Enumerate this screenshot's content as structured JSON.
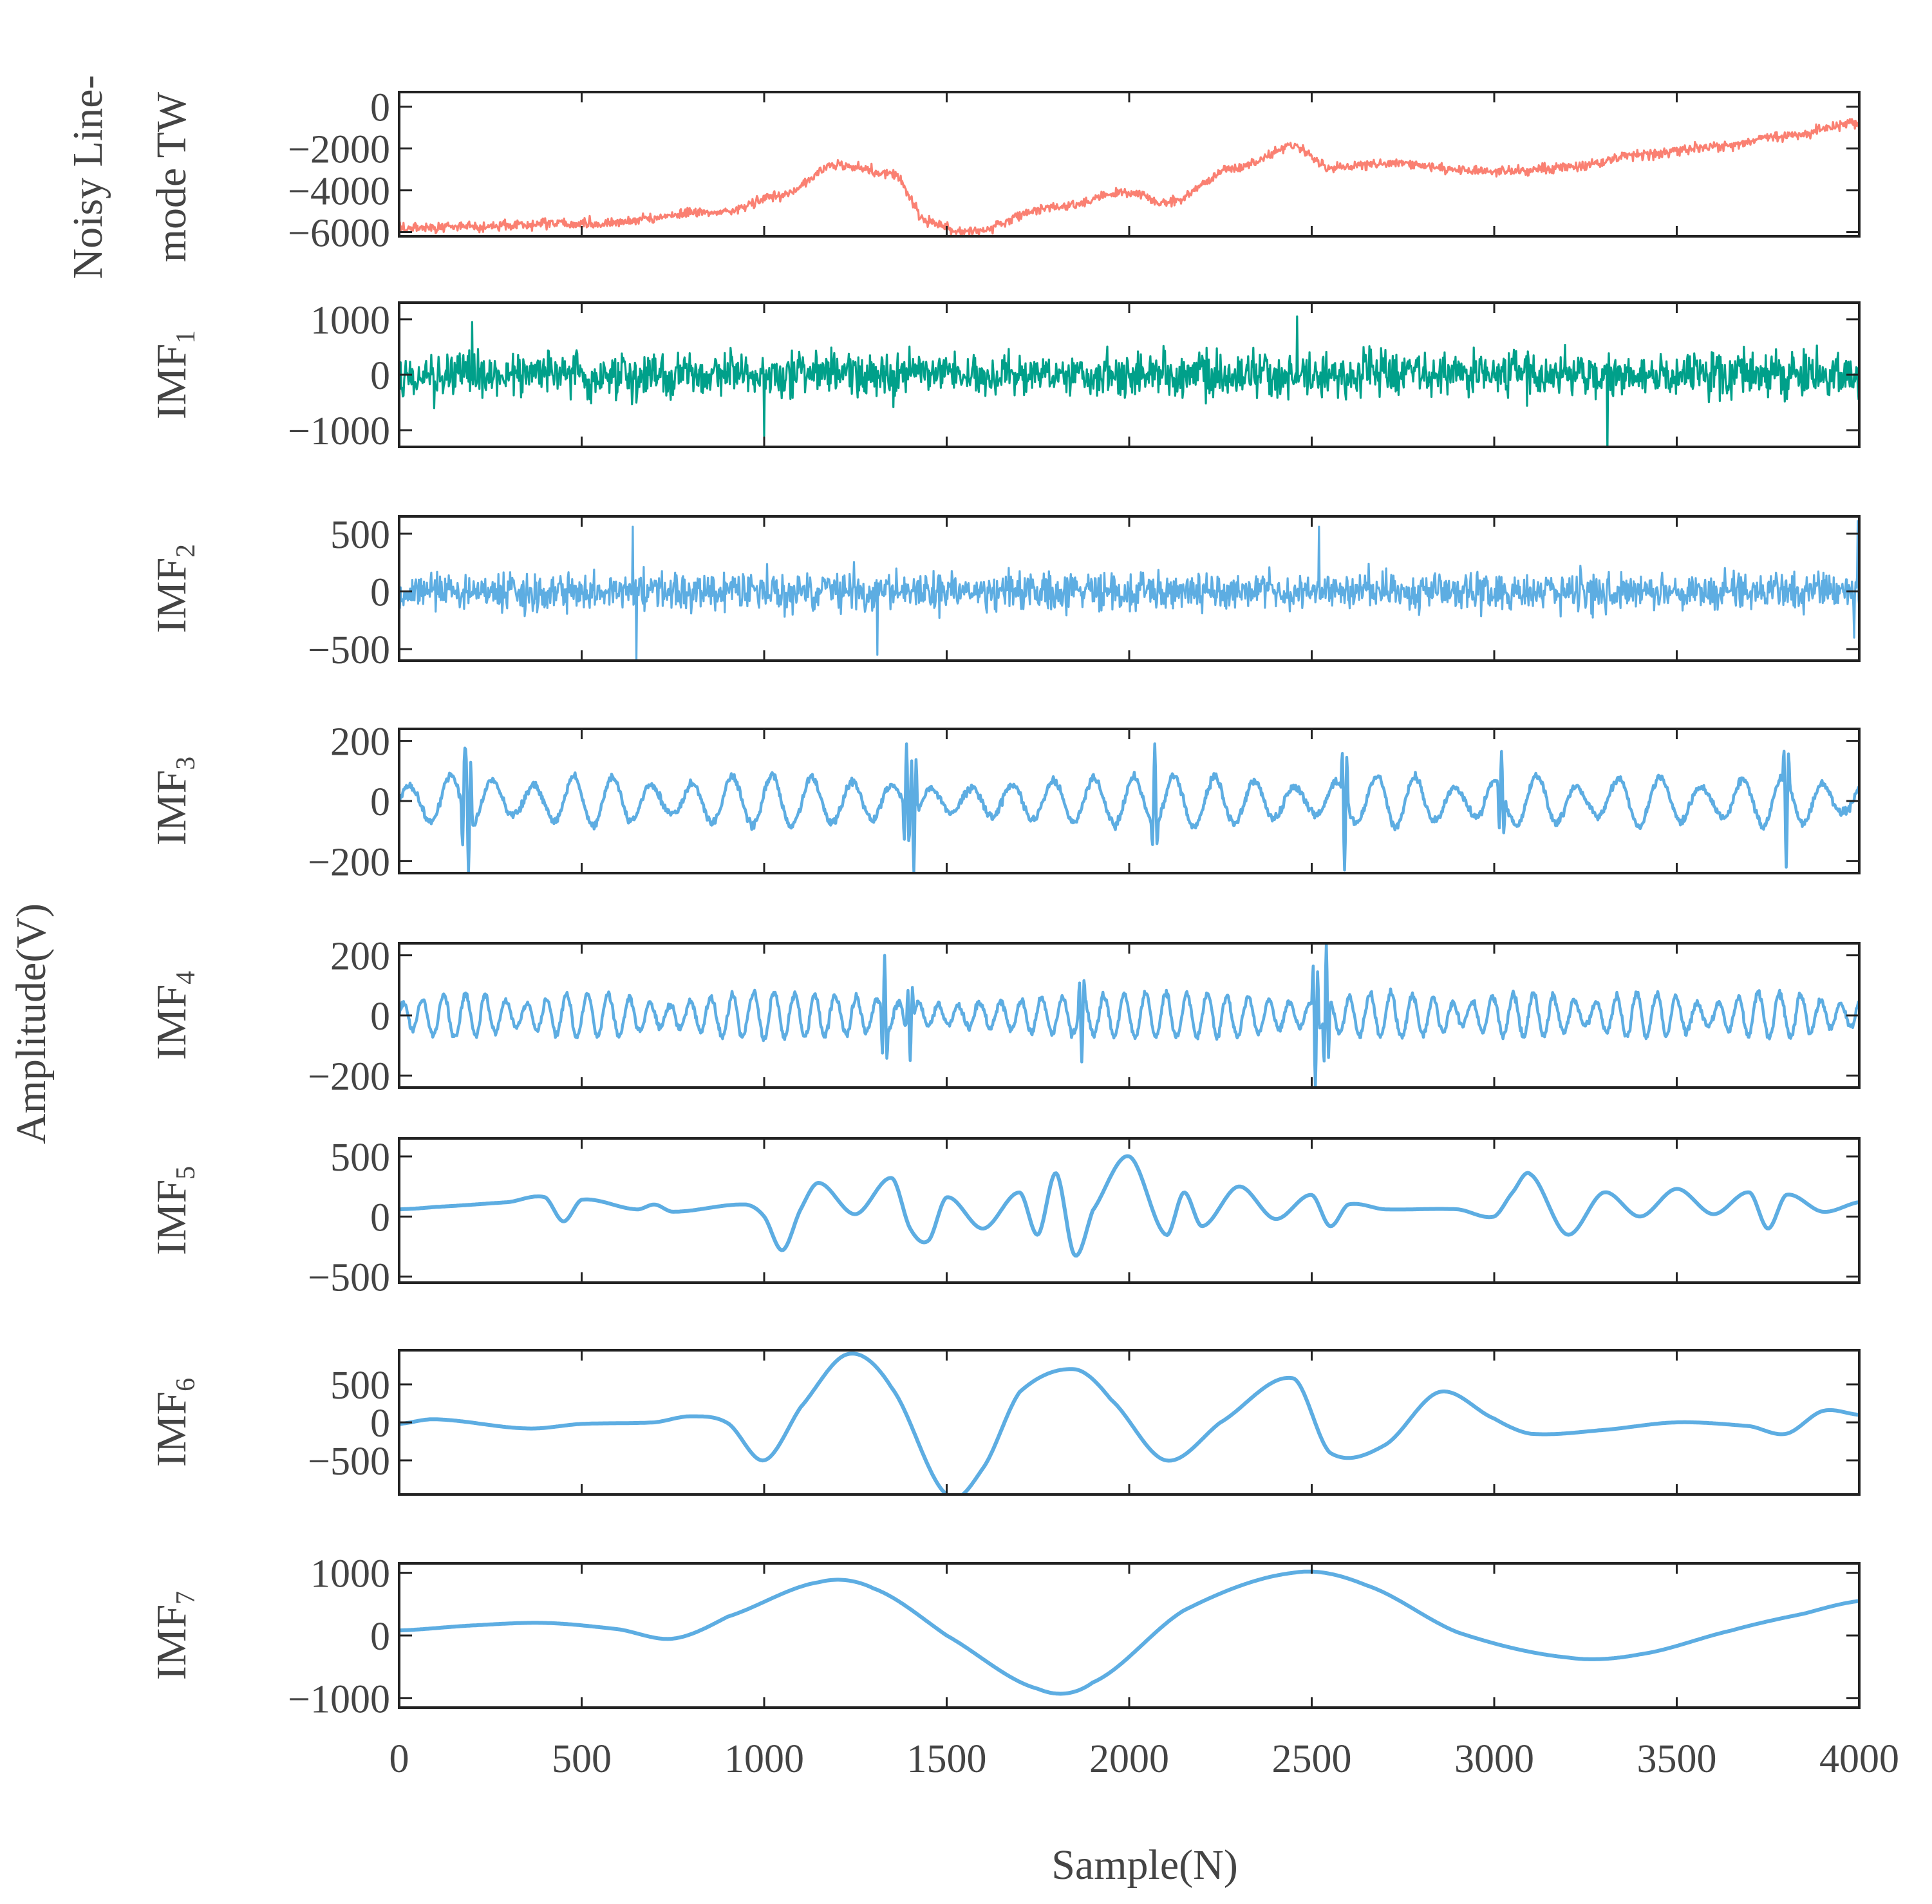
{
  "figure": {
    "ylabel": "Amplitude(V)",
    "xlabel": "Sample(N)",
    "colors": {
      "noisy": "#FA8072",
      "imf1": "#00A08A",
      "imf": "#5DADE2",
      "axis": "#222222",
      "text": "#444444"
    }
  },
  "chart_data": [
    {
      "type": "line",
      "id": "noisy",
      "ylabel_lines": [
        "Noisy Line-",
        "mode TW"
      ],
      "xlim": [
        0,
        4000
      ],
      "ylim": [
        -6200,
        700
      ],
      "yticks": [
        0,
        -2000,
        -4000,
        -6000
      ],
      "ytick_labels": [
        "0",
        "−2000",
        "−4000",
        "−6000"
      ],
      "color_key": "noisy",
      "style": "noisy",
      "noise_amp": 420,
      "trend_x": [
        0,
        500,
        900,
        1050,
        1200,
        1350,
        1450,
        1550,
        1800,
        2000,
        2100,
        2300,
        2450,
        2550,
        2700,
        3000,
        3200,
        3400,
        3600,
        3800,
        4000
      ],
      "trend_y": [
        -5800,
        -5600,
        -5000,
        -4200,
        -2800,
        -3200,
        -5500,
        -6000,
        -4800,
        -4100,
        -4600,
        -2900,
        -1900,
        -2900,
        -2700,
        -3100,
        -2900,
        -2300,
        -1900,
        -1400,
        -800
      ]
    },
    {
      "type": "line",
      "id": "imf1",
      "ylabel": "IMF",
      "ylabel_sub": "1",
      "xlim": [
        0,
        4000
      ],
      "ylim": [
        -1300,
        1300
      ],
      "yticks": [
        1000,
        0,
        -1000
      ],
      "ytick_labels": [
        "1000",
        "0",
        "−1000"
      ],
      "color_key": "imf1",
      "style": "noise",
      "amp": 520,
      "spikes": [
        [
          1000,
          -1100
        ],
        [
          2460,
          1050
        ],
        [
          3310,
          -1400
        ],
        [
          200,
          950
        ]
      ]
    },
    {
      "type": "line",
      "id": "imf2",
      "ylabel": "IMF",
      "ylabel_sub": "2",
      "xlim": [
        0,
        4000
      ],
      "ylim": [
        -600,
        650
      ],
      "yticks": [
        500,
        0,
        -500
      ],
      "ytick_labels": [
        "500",
        "0",
        "−500"
      ],
      "color_key": "imf",
      "style": "noise",
      "amp": 210,
      "spikes": [
        [
          640,
          560
        ],
        [
          650,
          -600
        ],
        [
          1310,
          -550
        ],
        [
          2520,
          560
        ],
        [
          3995,
          610
        ],
        [
          3985,
          -400
        ]
      ]
    },
    {
      "type": "line",
      "id": "imf3",
      "ylabel": "IMF",
      "ylabel_sub": "3",
      "xlim": [
        0,
        4000
      ],
      "ylim": [
        -240,
        240
      ],
      "yticks": [
        200,
        0,
        -200
      ],
      "ytick_labels": [
        "200",
        "0",
        "−200"
      ],
      "color_key": "imf",
      "style": "burst",
      "freq": 55,
      "amp": 85,
      "spikes": [
        [
          180,
          220
        ],
        [
          190,
          -240
        ],
        [
          1390,
          190
        ],
        [
          1410,
          -235
        ],
        [
          2070,
          190
        ],
        [
          2590,
          -230
        ],
        [
          3020,
          165
        ],
        [
          3800,
          -220
        ]
      ]
    },
    {
      "type": "line",
      "id": "imf4",
      "ylabel": "IMF",
      "ylabel_sub": "4",
      "xlim": [
        0,
        4000
      ],
      "ylim": [
        -240,
        240
      ],
      "yticks": [
        200,
        0,
        -200
      ],
      "ytick_labels": [
        "200",
        "0",
        "−200"
      ],
      "color_key": "imf",
      "style": "burst",
      "freq": 28,
      "amp": 75,
      "spikes": [
        [
          1330,
          200
        ],
        [
          1400,
          -150
        ],
        [
          1870,
          -155
        ],
        [
          2510,
          -240
        ],
        [
          2540,
          240
        ]
      ]
    },
    {
      "type": "line",
      "id": "imf5",
      "ylabel": "IMF",
      "ylabel_sub": "5",
      "xlim": [
        0,
        4000
      ],
      "ylim": [
        -550,
        650
      ],
      "yticks": [
        500,
        0,
        -500
      ],
      "ytick_labels": [
        "500",
        "0",
        "−500"
      ],
      "color_key": "imf",
      "style": "wave",
      "knots": [
        [
          0,
          60
        ],
        [
          100,
          80
        ],
        [
          300,
          120
        ],
        [
          400,
          160
        ],
        [
          450,
          -40
        ],
        [
          500,
          140
        ],
        [
          650,
          60
        ],
        [
          700,
          100
        ],
        [
          750,
          40
        ],
        [
          950,
          100
        ],
        [
          1000,
          0
        ],
        [
          1050,
          -280
        ],
        [
          1100,
          60
        ],
        [
          1150,
          280
        ],
        [
          1250,
          20
        ],
        [
          1350,
          320
        ],
        [
          1400,
          -100
        ],
        [
          1450,
          -200
        ],
        [
          1500,
          160
        ],
        [
          1600,
          -100
        ],
        [
          1700,
          200
        ],
        [
          1750,
          -150
        ],
        [
          1800,
          360
        ],
        [
          1850,
          -320
        ],
        [
          1900,
          50
        ],
        [
          2000,
          500
        ],
        [
          2100,
          -150
        ],
        [
          2150,
          200
        ],
        [
          2200,
          -80
        ],
        [
          2300,
          250
        ],
        [
          2400,
          -20
        ],
        [
          2500,
          180
        ],
        [
          2550,
          -80
        ],
        [
          2600,
          100
        ],
        [
          2700,
          60
        ],
        [
          2900,
          60
        ],
        [
          3000,
          0
        ],
        [
          3050,
          200
        ],
        [
          3100,
          350
        ],
        [
          3200,
          -150
        ],
        [
          3300,
          200
        ],
        [
          3400,
          0
        ],
        [
          3500,
          230
        ],
        [
          3600,
          20
        ],
        [
          3700,
          200
        ],
        [
          3750,
          -100
        ],
        [
          3800,
          180
        ],
        [
          3900,
          40
        ],
        [
          4000,
          120
        ]
      ]
    },
    {
      "type": "line",
      "id": "imf6",
      "ylabel": "IMF",
      "ylabel_sub": "6",
      "xlim": [
        0,
        4000
      ],
      "ylim": [
        -950,
        950
      ],
      "yticks": [
        500,
        0,
        -500
      ],
      "ytick_labels": [
        "500",
        "0",
        "−500"
      ],
      "color_key": "imf",
      "style": "smooth",
      "knots": [
        [
          0,
          -20
        ],
        [
          100,
          40
        ],
        [
          350,
          -80
        ],
        [
          500,
          -20
        ],
        [
          700,
          0
        ],
        [
          800,
          80
        ],
        [
          900,
          -10
        ],
        [
          1000,
          -500
        ],
        [
          1100,
          200
        ],
        [
          1230,
          900
        ],
        [
          1350,
          450
        ],
        [
          1500,
          -950
        ],
        [
          1600,
          -600
        ],
        [
          1700,
          400
        ],
        [
          1850,
          700
        ],
        [
          1950,
          300
        ],
        [
          2100,
          -500
        ],
        [
          2250,
          0
        ],
        [
          2450,
          580
        ],
        [
          2550,
          -400
        ],
        [
          2700,
          -300
        ],
        [
          2850,
          400
        ],
        [
          3000,
          50
        ],
        [
          3100,
          -150
        ],
        [
          3300,
          -100
        ],
        [
          3500,
          0
        ],
        [
          3700,
          -50
        ],
        [
          3800,
          -150
        ],
        [
          3900,
          150
        ],
        [
          4000,
          100
        ]
      ]
    },
    {
      "type": "line",
      "id": "imf7",
      "ylabel": "IMF",
      "ylabel_sub": "7",
      "xlim": [
        0,
        4000
      ],
      "ylim": [
        -1150,
        1150
      ],
      "yticks": [
        1000,
        0,
        -1000
      ],
      "ytick_labels": [
        "1000",
        "0",
        "−1000"
      ],
      "color_key": "imf",
      "style": "smooth",
      "knots": [
        [
          0,
          80
        ],
        [
          200,
          160
        ],
        [
          400,
          200
        ],
        [
          600,
          100
        ],
        [
          750,
          -50
        ],
        [
          900,
          300
        ],
        [
          1150,
          850
        ],
        [
          1300,
          750
        ],
        [
          1500,
          0
        ],
        [
          1750,
          -850
        ],
        [
          1900,
          -750
        ],
        [
          2150,
          400
        ],
        [
          2450,
          1000
        ],
        [
          2650,
          800
        ],
        [
          2900,
          50
        ],
        [
          3200,
          -350
        ],
        [
          3400,
          -300
        ],
        [
          3650,
          80
        ],
        [
          3850,
          350
        ],
        [
          4000,
          550
        ]
      ]
    }
  ],
  "xaxis": {
    "ticks": [
      0,
      500,
      1000,
      1500,
      2000,
      2500,
      3000,
      3500,
      4000
    ],
    "tick_labels": [
      "0",
      "500",
      "1000",
      "1500",
      "2000",
      "2500",
      "3000",
      "3500",
      "4000"
    ]
  }
}
